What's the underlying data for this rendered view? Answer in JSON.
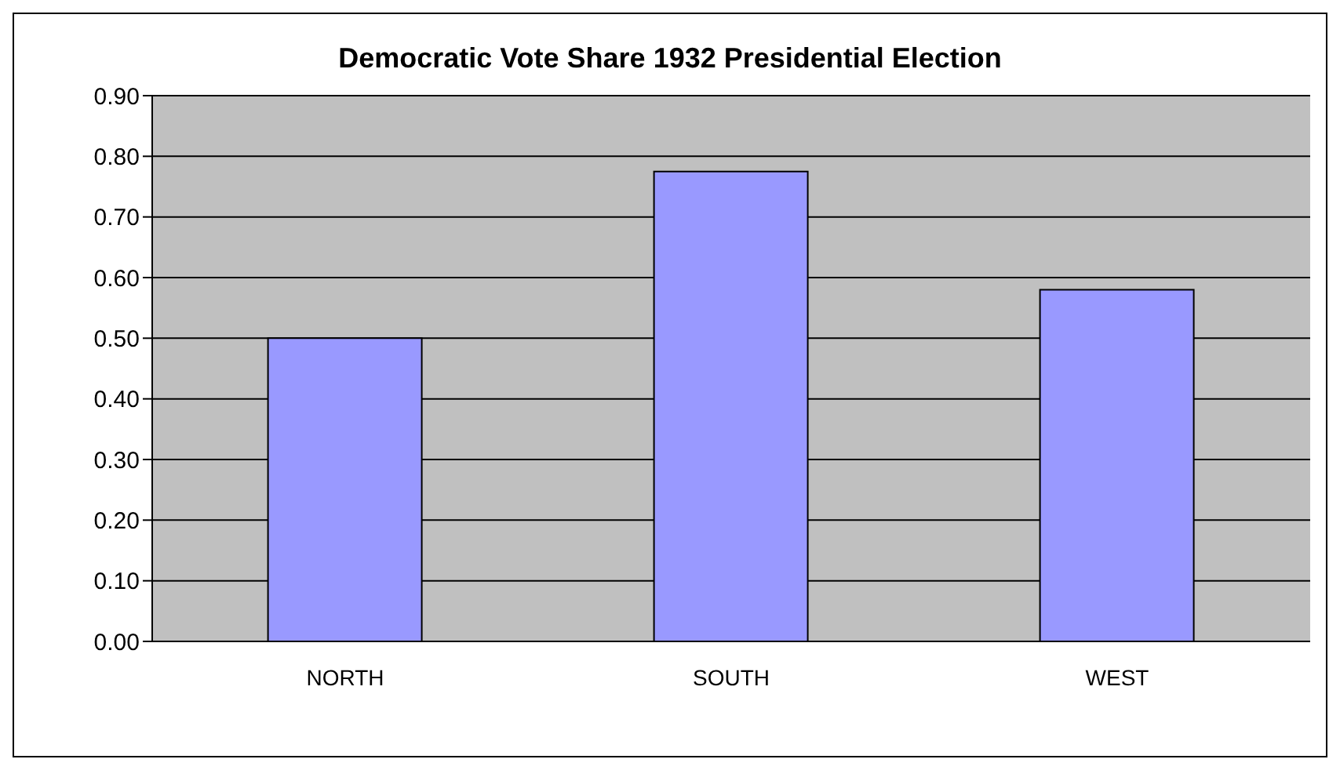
{
  "chart_data": {
    "type": "bar",
    "title": "Democratic Vote Share 1932 Presidential Election",
    "categories": [
      "NORTH",
      "SOUTH",
      "WEST"
    ],
    "values": [
      0.5,
      0.775,
      0.58
    ],
    "color": "#9999ff",
    "ylim": [
      0,
      0.9
    ],
    "yticks": [
      {
        "value": 0,
        "label": "0.00"
      },
      {
        "value": 0.1,
        "label": "0.10"
      },
      {
        "value": 0.2,
        "label": "0.20"
      },
      {
        "value": 0.3,
        "label": "0.30"
      },
      {
        "value": 0.4,
        "label": "0.40"
      },
      {
        "value": 0.5,
        "label": "0.50"
      },
      {
        "value": 0.6,
        "label": "0.60"
      },
      {
        "value": 0.7,
        "label": "0.70"
      },
      {
        "value": 0.8,
        "label": "0.80"
      },
      {
        "value": 0.9,
        "label": "0.90"
      }
    ],
    "grid": "y",
    "legend": false
  }
}
